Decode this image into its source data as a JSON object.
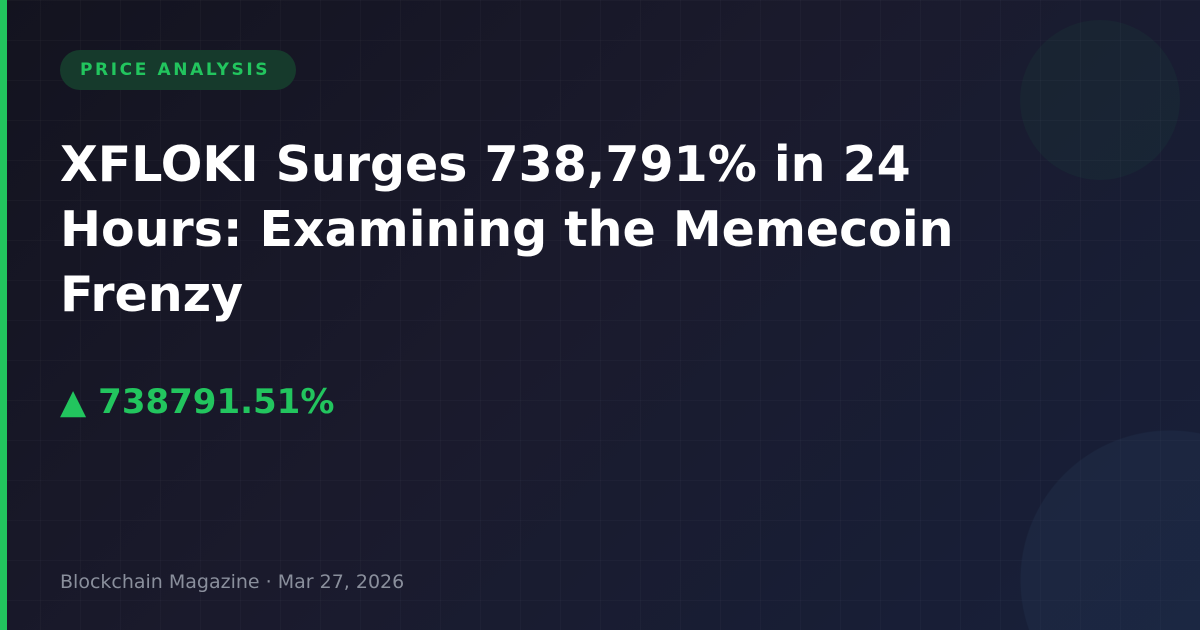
{
  "badge": "PRICE ANALYSIS",
  "title": "XFLOKI Surges 738,791% in 24 Hours: Examining the Memecoin Frenzy",
  "change": {
    "icon": "triangle-up-icon",
    "arrow": "▲",
    "value": "738791.51%"
  },
  "footer": "Blockchain Magazine · Mar 27, 2026",
  "colors": {
    "accent": "#22c55e",
    "background": "#1a1a2c"
  }
}
